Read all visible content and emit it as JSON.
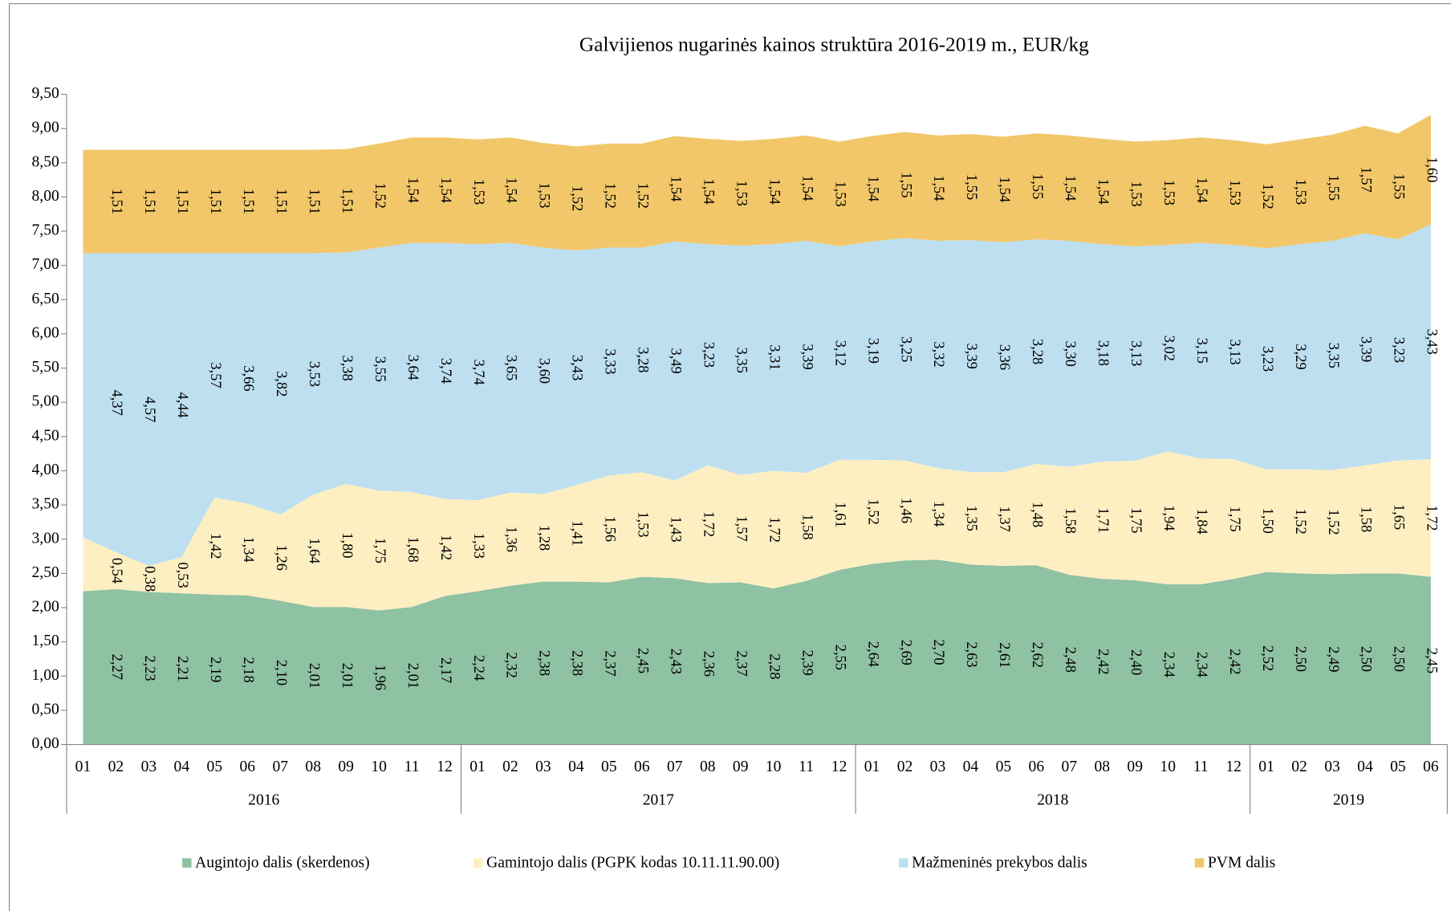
{
  "chart_data": {
    "type": "stacked_area",
    "title": "Galvijienos nugarinės kainos struktūra 2016-2019 m., EUR/kg",
    "categories": [
      "01",
      "02",
      "03",
      "04",
      "05",
      "06",
      "07",
      "08",
      "09",
      "10",
      "11",
      "12",
      "01",
      "02",
      "03",
      "04",
      "05",
      "06",
      "07",
      "08",
      "09",
      "10",
      "11",
      "12",
      "01",
      "02",
      "03",
      "04",
      "05",
      "06",
      "07",
      "08",
      "09",
      "10",
      "11",
      "12",
      "01",
      "02",
      "03",
      "04",
      "05",
      "06"
    ],
    "years": [
      "2016",
      "2017",
      "2018",
      "2019"
    ],
    "ylim": [
      0,
      9.5
    ],
    "yticks": [
      {
        "value": 0,
        "label": "0,00"
      },
      {
        "value": 0.5,
        "label": "0,50"
      },
      {
        "value": 1,
        "label": "1,00"
      },
      {
        "value": 1.5,
        "label": "1,50"
      },
      {
        "value": 2,
        "label": "2,00"
      },
      {
        "value": 2.5,
        "label": "2,50"
      },
      {
        "value": 3,
        "label": "3,00"
      },
      {
        "value": 3.5,
        "label": "3,50"
      },
      {
        "value": 4,
        "label": "4,00"
      },
      {
        "value": 4.5,
        "label": "4,50"
      },
      {
        "value": 5,
        "label": "5,00"
      },
      {
        "value": 5.5,
        "label": "5,50"
      },
      {
        "value": 6,
        "label": "6,00"
      },
      {
        "value": 6.5,
        "label": "6,50"
      },
      {
        "value": 7,
        "label": "7,00"
      },
      {
        "value": 7.5,
        "label": "7,50"
      },
      {
        "value": 8,
        "label": "8,00"
      },
      {
        "value": 8.5,
        "label": "8,50"
      },
      {
        "value": 9,
        "label": "9,00"
      },
      {
        "value": 9.5,
        "label": "9,50"
      }
    ],
    "grid": false,
    "legend": "bottom",
    "series": [
      {
        "name": "Augintojo dalis (skerdenos)",
        "color": "#8fc1a3",
        "values": [
          2.24,
          2.27,
          2.23,
          2.21,
          2.19,
          2.18,
          2.1,
          2.01,
          2.01,
          1.96,
          2.01,
          2.17,
          2.24,
          2.32,
          2.38,
          2.38,
          2.37,
          2.45,
          2.43,
          2.36,
          2.37,
          2.28,
          2.39,
          2.55,
          2.64,
          2.69,
          2.7,
          2.63,
          2.61,
          2.62,
          2.48,
          2.42,
          2.4,
          2.34,
          2.34,
          2.42,
          2.52,
          2.5,
          2.49,
          2.5,
          2.5,
          2.45
        ],
        "value_labels": [
          null,
          "2,27",
          "2,23",
          "2,21",
          "2,19",
          "2,18",
          "2,10",
          "2,01",
          "2,01",
          "1,96",
          "2,01",
          "2,17",
          "2,24",
          "2,32",
          "2,38",
          "2,38",
          "2,37",
          "2,45",
          "2,43",
          "2,36",
          "2,37",
          "2,28",
          "2,39",
          "2,55",
          "2,64",
          "2,69",
          "2,70",
          "2,63",
          "2,61",
          "2,62",
          "2,48",
          "2,42",
          "2,40",
          "2,34",
          "2,34",
          "2,42",
          "2,52",
          "2,50",
          "2,49",
          "2,50",
          "2,50",
          "2,45"
        ]
      },
      {
        "name": "Gamintojo dalis (PGPK kodas 10.11.11.90.00)",
        "color": "#fdefc2",
        "values": [
          0.79,
          0.54,
          0.38,
          0.53,
          1.42,
          1.34,
          1.26,
          1.64,
          1.8,
          1.75,
          1.68,
          1.42,
          1.33,
          1.36,
          1.28,
          1.41,
          1.56,
          1.53,
          1.43,
          1.72,
          1.57,
          1.72,
          1.58,
          1.61,
          1.52,
          1.46,
          1.34,
          1.35,
          1.37,
          1.48,
          1.58,
          1.71,
          1.75,
          1.94,
          1.84,
          1.75,
          1.5,
          1.52,
          1.52,
          1.58,
          1.65,
          1.72
        ],
        "value_labels": [
          null,
          "0,54",
          "0,38",
          "0,53",
          "1,42",
          "1,34",
          "1,26",
          "1,64",
          "1,80",
          "1,75",
          "1,68",
          "1,42",
          "1,33",
          "1,36",
          "1,28",
          "1,41",
          "1,56",
          "1,53",
          "1,43",
          "1,72",
          "1,57",
          "1,72",
          "1,58",
          "1,61",
          "1,52",
          "1,46",
          "1,34",
          "1,35",
          "1,37",
          "1,48",
          "1,58",
          "1,71",
          "1,75",
          "1,94",
          "1,84",
          "1,75",
          "1,50",
          "1,52",
          "1,52",
          "1,58",
          "1,65",
          "1,72"
        ]
      },
      {
        "name": "Mažmeninės prekybos dalis",
        "color": "#bddff0",
        "values": [
          4.15,
          4.37,
          4.57,
          4.44,
          3.57,
          3.66,
          3.82,
          3.53,
          3.38,
          3.55,
          3.64,
          3.74,
          3.74,
          3.65,
          3.6,
          3.43,
          3.33,
          3.28,
          3.49,
          3.23,
          3.35,
          3.31,
          3.39,
          3.12,
          3.19,
          3.25,
          3.32,
          3.39,
          3.36,
          3.28,
          3.3,
          3.18,
          3.13,
          3.02,
          3.15,
          3.13,
          3.23,
          3.29,
          3.35,
          3.39,
          3.23,
          3.43
        ],
        "value_labels": [
          null,
          "4,37",
          "4,57",
          "4,44",
          "3,57",
          "3,66",
          "3,82",
          "3,53",
          "3,38",
          "3,55",
          "3,64",
          "3,74",
          "3,74",
          "3,65",
          "3,60",
          "3,43",
          "3,33",
          "3,28",
          "3,49",
          "3,23",
          "3,35",
          "3,31",
          "3,39",
          "3,12",
          "3,19",
          "3,25",
          "3,32",
          "3,39",
          "3,36",
          "3,28",
          "3,30",
          "3,18",
          "3,13",
          "3,02",
          "3,15",
          "3,13",
          "3,23",
          "3,29",
          "3,35",
          "3,39",
          "3,23",
          "3,43"
        ]
      },
      {
        "name": "PVM dalis",
        "color": "#f2c76a",
        "values": [
          1.51,
          1.51,
          1.51,
          1.51,
          1.51,
          1.51,
          1.51,
          1.51,
          1.51,
          1.52,
          1.54,
          1.54,
          1.53,
          1.54,
          1.53,
          1.52,
          1.52,
          1.52,
          1.54,
          1.54,
          1.53,
          1.54,
          1.54,
          1.53,
          1.54,
          1.55,
          1.54,
          1.55,
          1.54,
          1.55,
          1.54,
          1.54,
          1.53,
          1.53,
          1.54,
          1.53,
          1.52,
          1.53,
          1.55,
          1.57,
          1.55,
          1.6
        ],
        "value_labels": [
          null,
          "1,51",
          "1,51",
          "1,51",
          "1,51",
          "1,51",
          "1,51",
          "1,51",
          "1,51",
          "1,52",
          "1,54",
          "1,54",
          "1,53",
          "1,54",
          "1,53",
          "1,52",
          "1,52",
          "1,52",
          "1,54",
          "1,54",
          "1,53",
          "1,54",
          "1,54",
          "1,53",
          "1,54",
          "1,55",
          "1,54",
          "1,55",
          "1,54",
          "1,55",
          "1,54",
          "1,54",
          "1,53",
          "1,53",
          "1,54",
          "1,53",
          "1,52",
          "1,53",
          "1,55",
          "1,57",
          "1,55",
          "1,60"
        ]
      }
    ]
  }
}
